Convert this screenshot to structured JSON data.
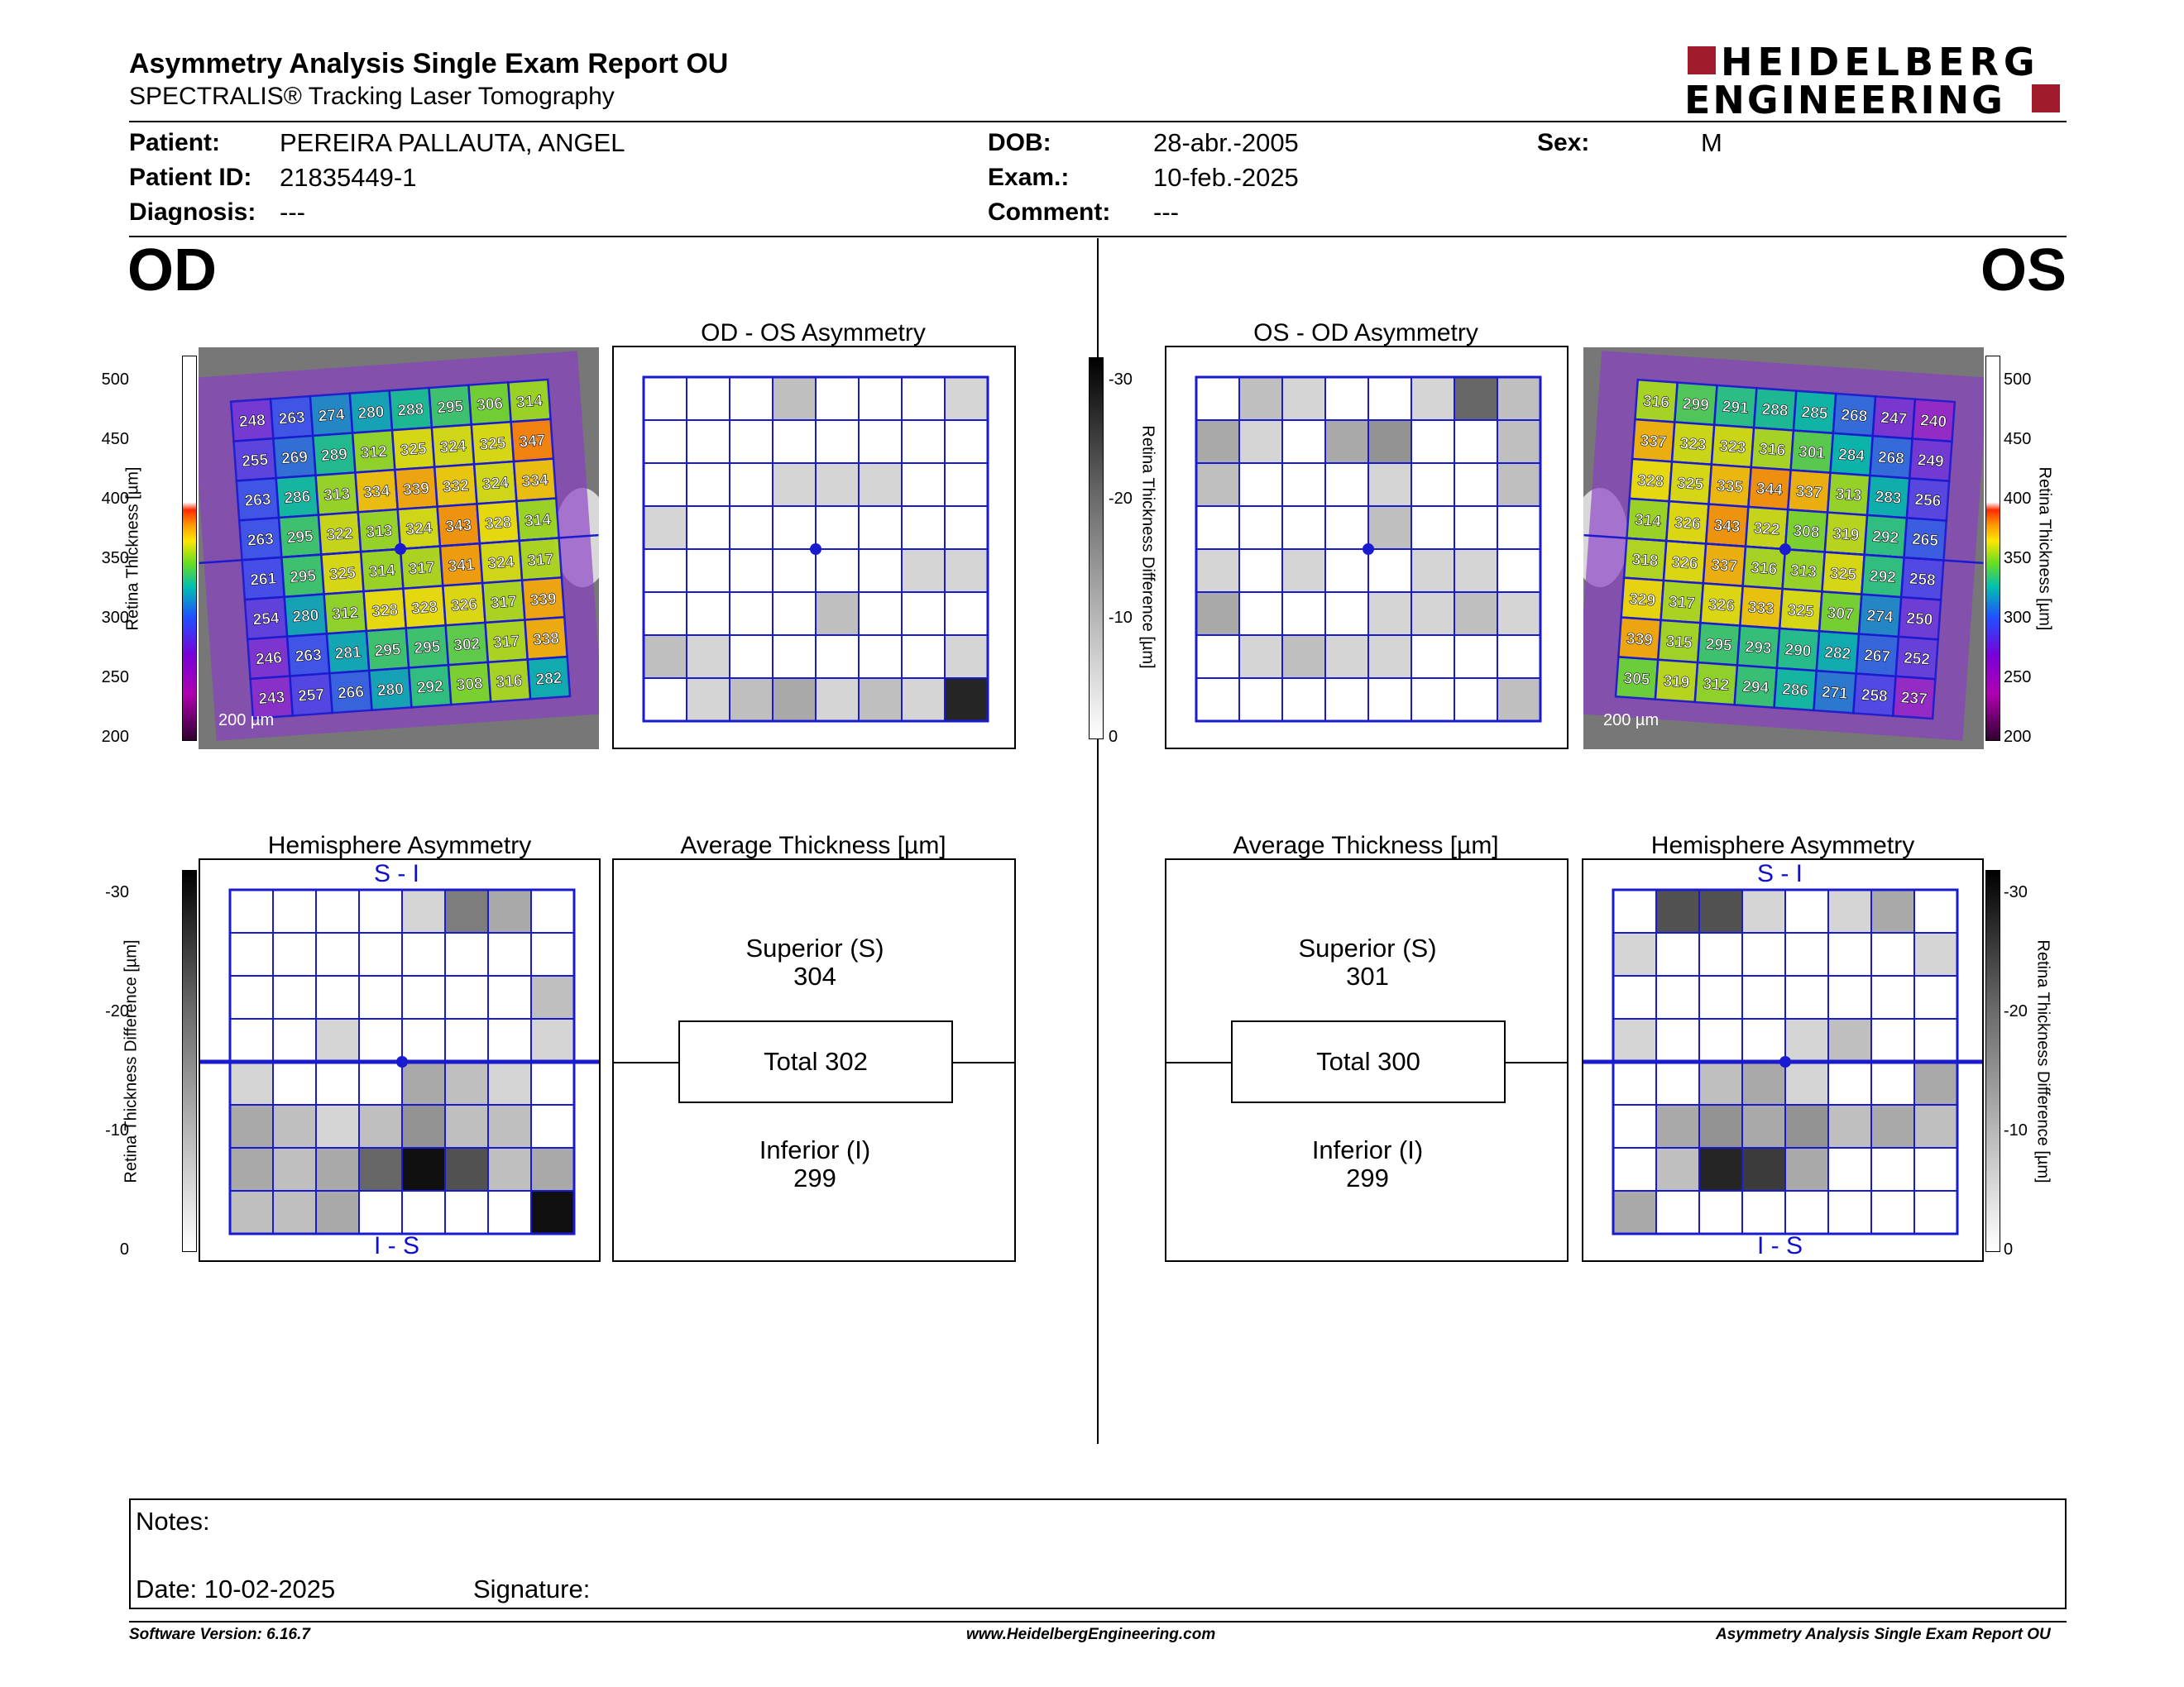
{
  "header": {
    "title": "Asymmetry Analysis Single Exam Report OU",
    "subtitle": "SPECTRALIS® Tracking Laser Tomography",
    "logo_line1": "HEIDELBERG",
    "logo_line2": "ENGINEERING",
    "brand_color": "#a01c2c"
  },
  "patient": {
    "patient_label": "Patient:",
    "patient_value": "PEREIRA PALLAUTA, ANGEL",
    "id_label": "Patient ID:",
    "id_value": "21835449-1",
    "diagnosis_label": "Diagnosis:",
    "diagnosis_value": "---",
    "dob_label": "DOB:",
    "dob_value": "28-abr.-2005",
    "exam_label": "Exam.:",
    "exam_value": "10-feb.-2025",
    "comment_label": "Comment:",
    "comment_value": "---",
    "sex_label": "Sex:",
    "sex_value": "M"
  },
  "od": {
    "eye_label": "OD",
    "asym_title": "OD - OS Asymmetry",
    "hemi_title": "Hemisphere Asymmetry",
    "avg_title": "Average Thickness [µm]",
    "superior_label": "Superior (S)",
    "superior_value": "304",
    "total_label": "Total 302",
    "inferior_label": "Inferior (I)",
    "inferior_value": "299",
    "scale_bar": "200 µm",
    "top_label": "S - I",
    "bottom_label": "I - S",
    "thickness_grid": [
      [
        "248",
        "263",
        "274",
        "280",
        "288",
        "295",
        "306",
        "314"
      ],
      [
        "255",
        "269",
        "289",
        "312",
        "325",
        "324",
        "325",
        "347"
      ],
      [
        "263",
        "286",
        "313",
        "334",
        "339",
        "332",
        "324",
        "334"
      ],
      [
        "263",
        "295",
        "322",
        "313",
        "324",
        "343",
        "328",
        "314"
      ],
      [
        "261",
        "295",
        "325",
        "314",
        "317",
        "341",
        "324",
        "317"
      ],
      [
        "254",
        "280",
        "312",
        "328",
        "328",
        "326",
        "317",
        "339"
      ],
      [
        "246",
        "263",
        "281",
        "295",
        "295",
        "302",
        "317",
        "338"
      ],
      [
        "243",
        "257",
        "266",
        "280",
        "292",
        "308",
        "316",
        "282"
      ]
    ],
    "asym_shades": [
      [
        0,
        0,
        0,
        2,
        0,
        0,
        0,
        1
      ],
      [
        0,
        0,
        0,
        0,
        0,
        0,
        0,
        0
      ],
      [
        0,
        0,
        0,
        1,
        1,
        1,
        0,
        0
      ],
      [
        1,
        0,
        0,
        0,
        0,
        0,
        0,
        0
      ],
      [
        0,
        0,
        0,
        0,
        0,
        0,
        1,
        1
      ],
      [
        0,
        0,
        0,
        0,
        2,
        0,
        0,
        0
      ],
      [
        2,
        1,
        0,
        0,
        0,
        0,
        0,
        1
      ],
      [
        0,
        1,
        2,
        3,
        1,
        2,
        1,
        9
      ]
    ],
    "hemi_shades": [
      [
        0,
        0,
        0,
        0,
        1,
        5,
        3,
        0
      ],
      [
        0,
        0,
        0,
        0,
        0,
        0,
        0,
        0
      ],
      [
        0,
        0,
        0,
        0,
        0,
        0,
        0,
        2
      ],
      [
        0,
        0,
        1,
        0,
        0,
        0,
        0,
        1
      ],
      [
        1,
        0,
        0,
        0,
        3,
        2,
        1,
        0
      ],
      [
        3,
        2,
        1,
        2,
        4,
        2,
        2,
        0
      ],
      [
        3,
        2,
        3,
        6,
        10,
        7,
        2,
        3
      ],
      [
        2,
        2,
        3,
        0,
        0,
        0,
        0,
        10
      ]
    ]
  },
  "os": {
    "eye_label": "OS",
    "asym_title": "OS - OD Asymmetry",
    "hemi_title": "Hemisphere Asymmetry",
    "avg_title": "Average Thickness [µm]",
    "superior_label": "Superior (S)",
    "superior_value": "301",
    "total_label": "Total 300",
    "inferior_label": "Inferior (I)",
    "inferior_value": "299",
    "scale_bar": "200 µm",
    "top_label": "S - I",
    "bottom_label": "I - S",
    "thickness_grid": [
      [
        "316",
        "299",
        "291",
        "288",
        "285",
        "268",
        "247",
        "240"
      ],
      [
        "337",
        "323",
        "323",
        "316",
        "301",
        "284",
        "268",
        "249"
      ],
      [
        "328",
        "325",
        "335",
        "344",
        "337",
        "313",
        "283",
        "256"
      ],
      [
        "314",
        "326",
        "343",
        "322",
        "308",
        "319",
        "292",
        "265"
      ],
      [
        "318",
        "326",
        "337",
        "316",
        "313",
        "325",
        "292",
        "258"
      ],
      [
        "329",
        "317",
        "326",
        "333",
        "325",
        "307",
        "274",
        "250"
      ],
      [
        "339",
        "315",
        "295",
        "293",
        "290",
        "282",
        "267",
        "252"
      ],
      [
        "305",
        "319",
        "312",
        "294",
        "286",
        "271",
        "258",
        "237"
      ]
    ],
    "asym_shades": [
      [
        0,
        2,
        1,
        0,
        0,
        1,
        6,
        2
      ],
      [
        3,
        1,
        0,
        3,
        4,
        0,
        0,
        2
      ],
      [
        2,
        0,
        0,
        0,
        1,
        0,
        0,
        2
      ],
      [
        0,
        0,
        0,
        0,
        2,
        0,
        0,
        0
      ],
      [
        1,
        0,
        1,
        0,
        0,
        1,
        1,
        0
      ],
      [
        3,
        0,
        0,
        0,
        1,
        1,
        2,
        1
      ],
      [
        0,
        1,
        2,
        1,
        1,
        0,
        0,
        0
      ],
      [
        0,
        0,
        0,
        0,
        0,
        0,
        0,
        2
      ]
    ],
    "hemi_shades": [
      [
        0,
        7,
        7,
        1,
        0,
        1,
        3,
        0
      ],
      [
        1,
        0,
        0,
        0,
        0,
        0,
        0,
        1
      ],
      [
        0,
        0,
        0,
        0,
        0,
        0,
        0,
        0
      ],
      [
        1,
        0,
        0,
        0,
        1,
        2,
        0,
        0
      ],
      [
        0,
        0,
        2,
        3,
        1,
        0,
        0,
        3
      ],
      [
        0,
        3,
        4,
        3,
        4,
        2,
        3,
        2
      ],
      [
        0,
        2,
        9,
        8,
        3,
        0,
        0,
        0
      ],
      [
        3,
        0,
        0,
        0,
        0,
        0,
        0,
        0
      ]
    ]
  },
  "scales": {
    "thickness_label": "Retina Thickness [µm]",
    "thickness_ticks": [
      "500",
      "450",
      "400",
      "350",
      "300",
      "250",
      "200"
    ],
    "difference_label": "Retina Thickness Difference [µm]",
    "difference_ticks": [
      "-30",
      "-20",
      "-10",
      "0"
    ]
  },
  "notes": {
    "notes_label": "Notes:",
    "date_label": "Date: 10-02-2025",
    "signature_label": "Signature:"
  },
  "footer": {
    "software": "Software Version: 6.16.7",
    "website": "www.HeidelbergEngineering.com",
    "report": "Asymmetry Analysis Single Exam Report OU"
  }
}
